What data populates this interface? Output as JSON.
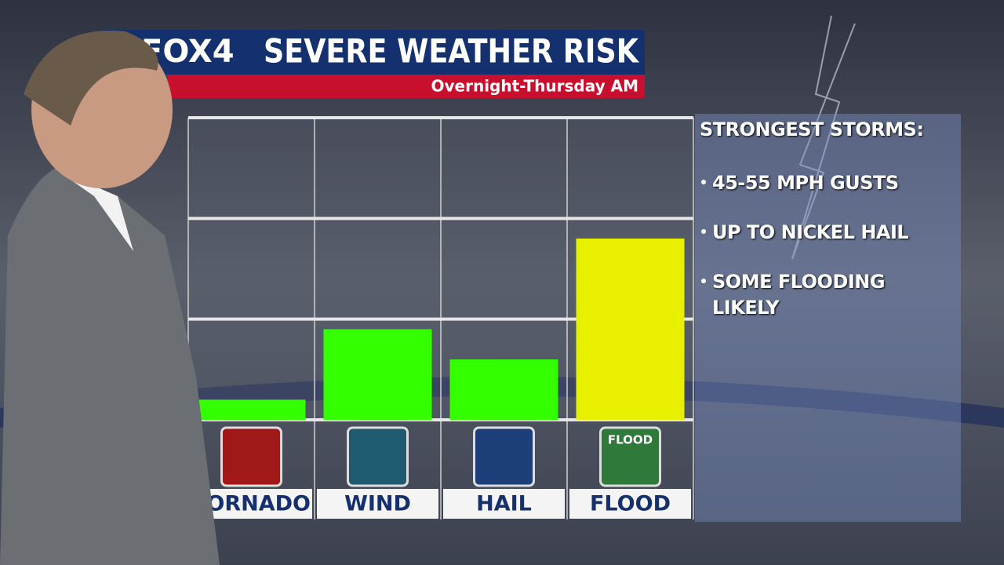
{
  "chart_data": {
    "type": "bar",
    "logo": "FOX4",
    "title": "SEVERE WEATHER RISK",
    "subtitle": "Overnight-Thursday AM",
    "categories": [
      "TORNADO",
      "WIND",
      "HAIL",
      "FLOOD"
    ],
    "values": [
      0.2,
      0.9,
      0.6,
      1.8
    ],
    "colors": [
      "#33ff00",
      "#33ff00",
      "#33ff00",
      "#e8f000"
    ],
    "icons": [
      null,
      null,
      null,
      "FLOOD"
    ],
    "ylim": [
      0,
      3
    ],
    "yticks": [
      0,
      1,
      2,
      3
    ],
    "grid": true,
    "panel": {
      "heading": "STRONGEST STORMS:",
      "items": [
        "45-55 MPH GUSTS",
        "UP TO NICKEL HAIL",
        "SOME FLOODING LIKELY"
      ]
    }
  }
}
